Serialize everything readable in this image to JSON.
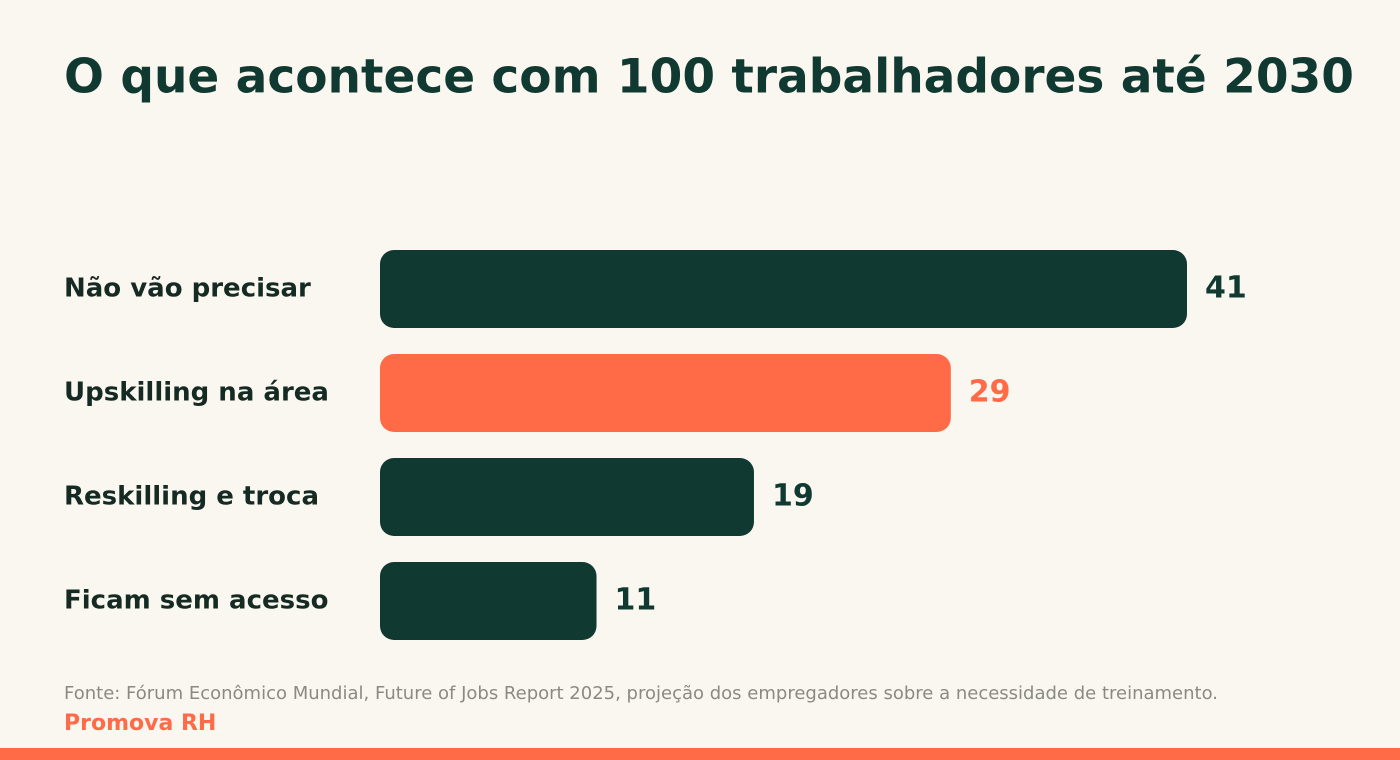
{
  "chart_data": {
    "type": "bar",
    "orientation": "horizontal",
    "title": "O que acontece com 100 trabalhadores até 2030",
    "categories": [
      "Não vão precisar",
      "Upskilling na área",
      "Reskilling e troca",
      "Ficam sem acesso"
    ],
    "values": [
      41,
      29,
      19,
      11
    ],
    "colors": [
      "#103a31",
      "#ff6b47",
      "#103a31",
      "#103a31"
    ],
    "source": "Fonte: Fórum Econômico Mundial, Future of Jobs Report 2025, projeção dos empregadores sobre a necessidade de treinamento.",
    "brand": "Promova RH"
  }
}
